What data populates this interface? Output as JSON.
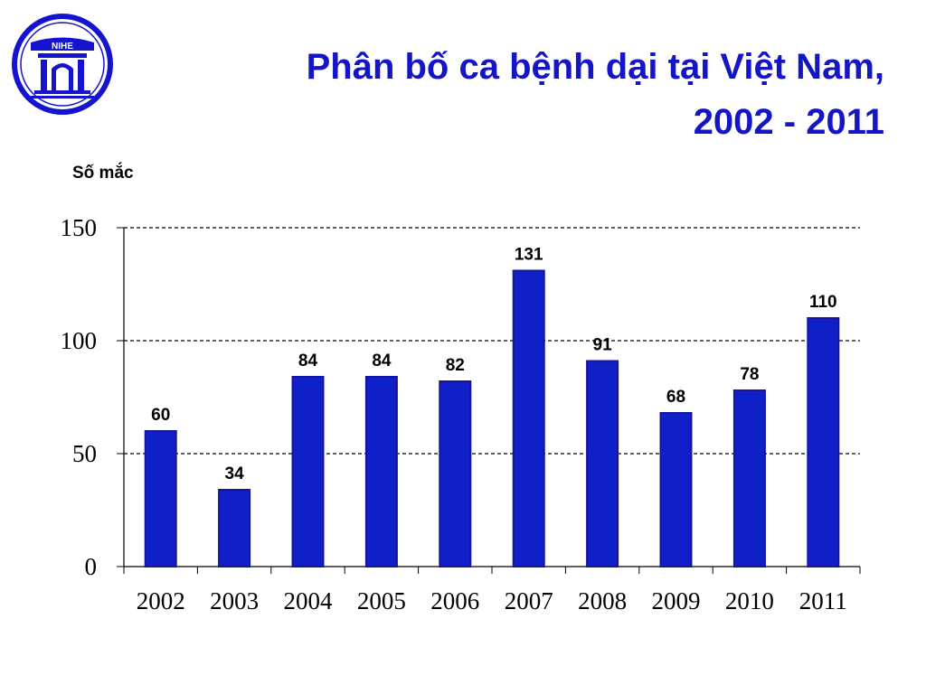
{
  "logo": {
    "text": "NIHE"
  },
  "title": {
    "line1": "Phân bố ca bệnh dại tại Việt Nam,",
    "line2": "2002 - 2011"
  },
  "chart_data": {
    "type": "bar",
    "ylabel": "Số mắc",
    "xlabel": "",
    "categories": [
      "2002",
      "2003",
      "2004",
      "2005",
      "2006",
      "2007",
      "2008",
      "2009",
      "2010",
      "2011"
    ],
    "values": [
      60,
      34,
      84,
      84,
      82,
      131,
      91,
      68,
      78,
      110
    ],
    "yticks": [
      "0",
      "50",
      "100",
      "150"
    ],
    "ylim": [
      0,
      150
    ],
    "grid": "dashed horizontal",
    "bar_color": "#1020c8",
    "bar_edge": "#1414a0"
  }
}
